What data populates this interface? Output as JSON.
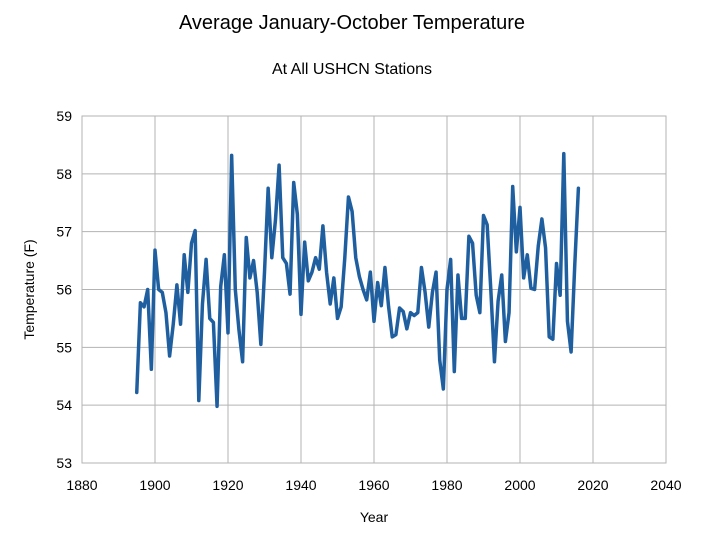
{
  "chart_data": {
    "type": "line",
    "title": "Average January-October Temperature",
    "subtitle": "At All USHCN Stations",
    "xlabel": "Year",
    "ylabel": "Temperature (F)",
    "xlim": [
      1880,
      2040
    ],
    "ylim": [
      53,
      59
    ],
    "xticks": [
      1880,
      1900,
      1920,
      1940,
      1960,
      1980,
      2000,
      2020,
      2040
    ],
    "yticks": [
      53,
      54,
      55,
      56,
      57,
      58,
      59
    ],
    "grid": true,
    "legend": "none",
    "series": [
      {
        "color": "#1f5fa0",
        "x": [
          1895,
          1896,
          1897,
          1898,
          1899,
          1900,
          1901,
          1902,
          1903,
          1904,
          1905,
          1906,
          1907,
          1908,
          1909,
          1910,
          1911,
          1912,
          1913,
          1914,
          1915,
          1916,
          1917,
          1918,
          1919,
          1920,
          1921,
          1922,
          1923,
          1924,
          1925,
          1926,
          1927,
          1928,
          1929,
          1930,
          1931,
          1932,
          1933,
          1934,
          1935,
          1936,
          1937,
          1938,
          1939,
          1940,
          1941,
          1942,
          1943,
          1944,
          1945,
          1946,
          1947,
          1948,
          1949,
          1950,
          1951,
          1952,
          1953,
          1954,
          1955,
          1956,
          1957,
          1958,
          1959,
          1960,
          1961,
          1962,
          1963,
          1964,
          1965,
          1966,
          1967,
          1968,
          1969,
          1970,
          1971,
          1972,
          1973,
          1974,
          1975,
          1976,
          1977,
          1978,
          1979,
          1980,
          1981,
          1982,
          1983,
          1984,
          1985,
          1986,
          1987,
          1988,
          1989,
          1990,
          1991,
          1992,
          1993,
          1994,
          1995,
          1996,
          1997,
          1998,
          1999,
          2000,
          2001,
          2002,
          2003,
          2004,
          2005,
          2006,
          2007,
          2008,
          2009,
          2010,
          2011,
          2012,
          2013,
          2014,
          2015,
          2016
        ],
        "y": [
          54.22,
          55.77,
          55.7,
          56.0,
          54.62,
          56.68,
          56.0,
          55.95,
          55.6,
          54.85,
          55.4,
          56.08,
          55.4,
          56.6,
          55.95,
          56.8,
          57.02,
          54.08,
          55.75,
          56.52,
          55.5,
          55.43,
          53.98,
          56.05,
          56.6,
          55.25,
          58.32,
          56.0,
          55.3,
          54.75,
          56.9,
          56.2,
          56.5,
          55.95,
          55.05,
          56.3,
          57.75,
          56.55,
          57.2,
          58.15,
          56.55,
          56.45,
          55.92,
          57.85,
          57.3,
          55.57,
          56.82,
          56.15,
          56.3,
          56.55,
          56.35,
          57.1,
          56.3,
          55.75,
          56.2,
          55.5,
          55.7,
          56.55,
          57.6,
          57.35,
          56.55,
          56.22,
          56.0,
          55.82,
          56.3,
          55.45,
          56.12,
          55.72,
          56.38,
          55.7,
          55.18,
          55.22,
          55.68,
          55.62,
          55.32,
          55.6,
          55.55,
          55.6,
          56.38,
          55.95,
          55.35,
          55.95,
          56.3,
          54.78,
          54.28,
          56.0,
          56.52,
          54.58,
          56.25,
          55.5,
          55.5,
          56.92,
          56.8,
          55.9,
          55.6,
          57.28,
          57.12,
          56.0,
          54.75,
          55.8,
          56.25,
          55.1,
          55.6,
          57.78,
          56.65,
          57.42,
          56.2,
          56.6,
          56.02,
          56.0,
          56.75,
          57.22,
          56.72,
          55.18,
          55.14,
          56.45,
          55.9,
          58.35,
          55.45,
          54.92,
          56.42,
          57.75
        ]
      }
    ]
  }
}
